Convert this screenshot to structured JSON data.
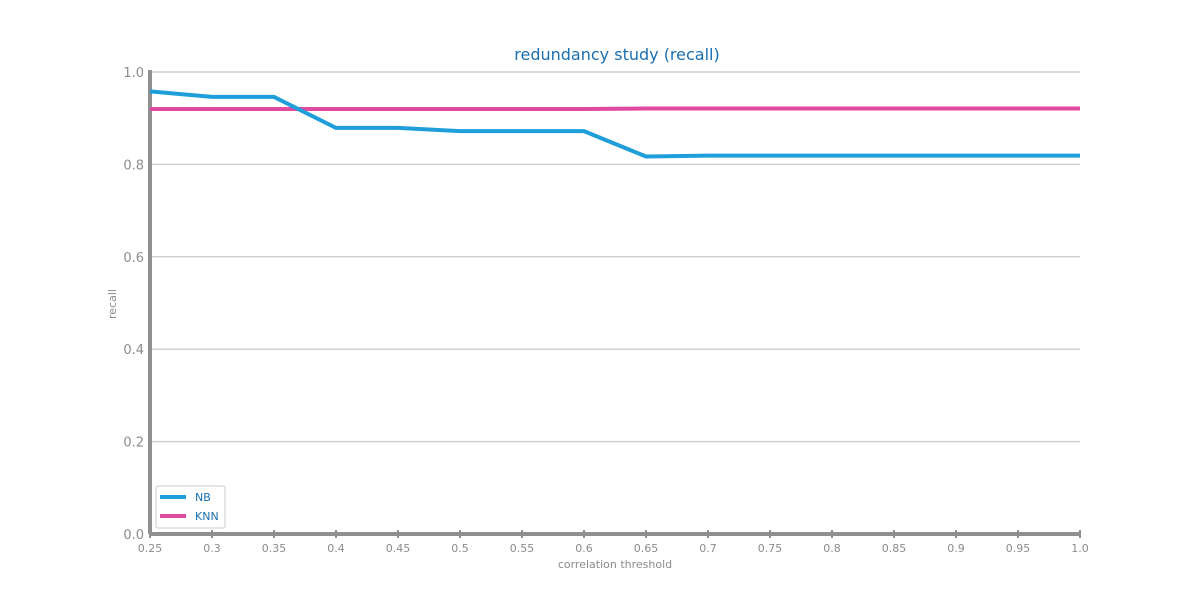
{
  "chart_data": {
    "type": "line",
    "title": "redundancy study (recall)",
    "xlabel": "correlation threshold",
    "ylabel": "recall",
    "x": [
      0.25,
      0.3,
      0.35,
      0.4,
      0.45,
      0.5,
      0.55,
      0.6,
      0.65,
      0.7,
      0.75,
      0.8,
      0.85,
      0.9,
      0.95,
      1.0
    ],
    "x_tick_labels": [
      "0.25",
      "0.3",
      "0.35",
      "0.4",
      "0.45",
      "0.5",
      "0.55",
      "0.6",
      "0.65",
      "0.7",
      "0.75",
      "0.8",
      "0.85",
      "0.9",
      "0.95",
      "1.0"
    ],
    "y_ticks": [
      0.0,
      0.2,
      0.4,
      0.6,
      0.8,
      1.0
    ],
    "y_tick_labels": [
      "0.0",
      "0.2",
      "0.4",
      "0.6",
      "0.8",
      "1.0"
    ],
    "xlim": [
      0.25,
      1.0
    ],
    "ylim": [
      0.0,
      1.0
    ],
    "grid": "horizontal",
    "legend_position": "lower-left",
    "series": [
      {
        "name": "NB",
        "color": "#1f9ed9",
        "values": [
          0.958,
          0.946,
          0.946,
          0.879,
          0.879,
          0.872,
          0.872,
          0.872,
          0.817,
          0.819,
          0.819,
          0.819,
          0.819,
          0.819,
          0.819,
          0.819
        ]
      },
      {
        "name": "KNN",
        "color": "#e04a9f",
        "values": [
          0.92,
          0.92,
          0.92,
          0.92,
          0.92,
          0.92,
          0.92,
          0.92,
          0.921,
          0.921,
          0.921,
          0.921,
          0.921,
          0.921,
          0.921,
          0.921
        ]
      }
    ]
  }
}
